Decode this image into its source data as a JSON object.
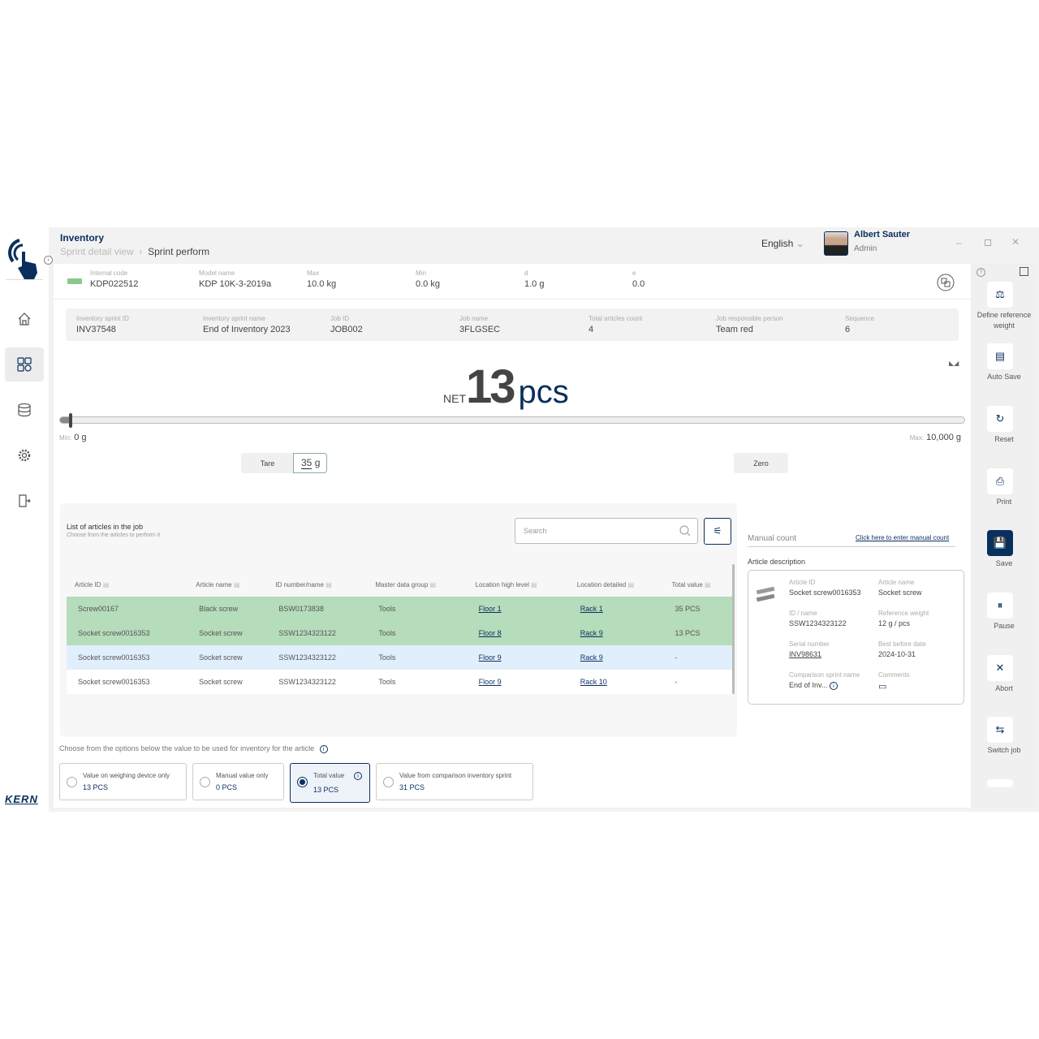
{
  "header": {
    "title": "Inventory",
    "breadcrumb": [
      "Sprint detail view",
      "Sprint perform"
    ],
    "language": "English",
    "user_name": "Albert Sauter",
    "user_role": "Admin"
  },
  "sidebar": {
    "items": [
      "home-icon",
      "dashboard-icon",
      "database-icon",
      "settings-icon",
      "logout-icon"
    ],
    "active": 1,
    "brand": "KERN"
  },
  "device": [
    {
      "label": "Internal code",
      "value": "KDP022512"
    },
    {
      "label": "Model name",
      "value": "KDP 10K-3-2019a"
    },
    {
      "label": "Max",
      "value": "10.0 kg"
    },
    {
      "label": "Min",
      "value": "0.0 kg"
    },
    {
      "label": "d",
      "value": "1.0 g"
    },
    {
      "label": "e",
      "value": "0.0"
    }
  ],
  "sprint": [
    {
      "label": "Inventory sprint ID",
      "value": "INV37548"
    },
    {
      "label": "Inventory sprint name",
      "value": "End of Inventory 2023"
    },
    {
      "label": "Job ID",
      "value": "JOB002"
    },
    {
      "label": "Job name",
      "value": "3FLGSEC"
    },
    {
      "label": "Total articles count",
      "value": "4"
    },
    {
      "label": "Job responsible person",
      "value": "Team red"
    },
    {
      "label": "Sequence",
      "value": "6"
    }
  ],
  "weight": {
    "prefix": "NET",
    "value": "13",
    "unit": "pcs",
    "min_label": "Min:",
    "min": "0 g",
    "max_label": "Max:",
    "max": "10,000 g",
    "level_fraction": 0.0035
  },
  "tare": {
    "label": "Tare",
    "value": "35",
    "unit": "g"
  },
  "zero_label": "Zero",
  "articles": {
    "title": "List of articles in the job",
    "subtitle": "Choose from the articles to perform it",
    "search_placeholder": "Search",
    "columns": [
      "Article ID",
      "Article name",
      "ID number/name",
      "Master data group",
      "Location high level",
      "Location detailed",
      "Total value"
    ],
    "rows": [
      {
        "state": "counted",
        "cells": [
          "Screw00167",
          "Black screw",
          "BSW0173838",
          "Tools",
          "Floor 1",
          "Rack 1",
          "35 PCS"
        ]
      },
      {
        "state": "counted",
        "cells": [
          "Socket screw0016353",
          "Socket screw",
          "SSW1234323122",
          "Tools",
          "Floor 8",
          "Rack 9",
          "13 PCS"
        ]
      },
      {
        "state": "selected",
        "cells": [
          "Socket screw0016353",
          "Socket screw",
          "SSW1234323122",
          "Tools",
          "Floor 9",
          "Rack 9",
          "-"
        ]
      },
      {
        "state": "pending",
        "cells": [
          "Socket screw0016353",
          "Socket screw",
          "SSW1234323122",
          "Tools",
          "Floor 9",
          "Rack 10",
          "-"
        ]
      }
    ]
  },
  "manual": {
    "label": "Manual count",
    "link": "Click here to enter manual count"
  },
  "description": {
    "title": "Article description",
    "fields": [
      {
        "label": "Article ID",
        "value": "Socket screw0016353"
      },
      {
        "label": "Article name",
        "value": "Socket screw"
      },
      {
        "label": "ID / name",
        "value": "SSW1234323122"
      },
      {
        "label": "Reference weight",
        "value": "12 g / pcs"
      },
      {
        "label": "Serial number",
        "value": "INV98631"
      },
      {
        "label": "Best before date",
        "value": "2024-10-31"
      },
      {
        "label": "Comparison sprint name",
        "value": "End of Inv..."
      },
      {
        "label": "Comments",
        "value": ""
      }
    ]
  },
  "options": {
    "prompt": "Choose from the options below the value to be used for inventory for the article",
    "items": [
      {
        "label": "Value on weighing device only",
        "value": "13 PCS"
      },
      {
        "label": "Manual value only",
        "value": "0 PCS"
      },
      {
        "label": "Total value",
        "value": "13 PCS"
      },
      {
        "label": "Value from comparison inventory sprint",
        "value": "31 PCS"
      }
    ],
    "selected": 2
  },
  "rail": [
    "Define reference weight",
    "Auto Save",
    "Reset",
    "Print",
    "Save",
    "Pause",
    "Abort",
    "Switch job"
  ],
  "colors": {
    "brand": "#0a2f5c",
    "counted_row": "#b5dcbb",
    "selected_row": "#e1effc"
  }
}
